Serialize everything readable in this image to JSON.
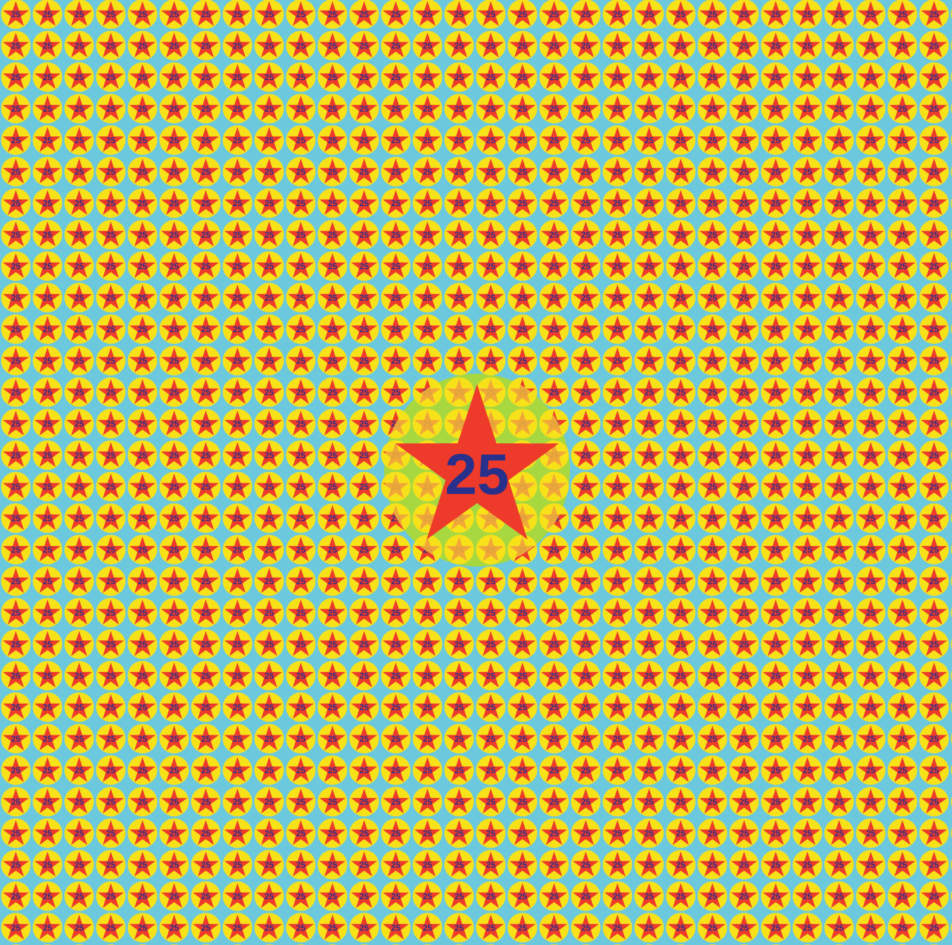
{
  "label": "25",
  "center_label": "25",
  "colors": {
    "background": "#6cc8dc",
    "dot": "#f7e21a",
    "star": "#ee3a2a",
    "number": "#27308a",
    "halo": "#a8d840",
    "faded_star": "#f2a838",
    "faded_number": "#d9a040"
  }
}
